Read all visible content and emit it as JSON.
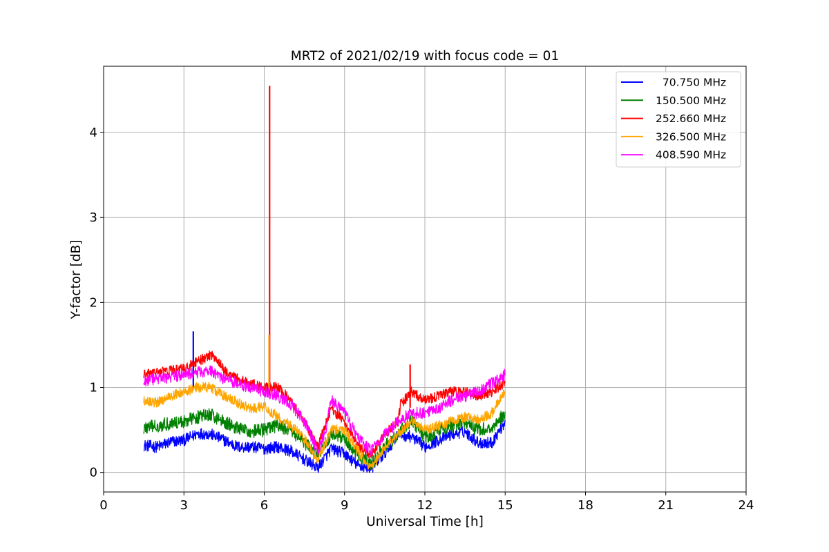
{
  "chart_data": {
    "type": "line",
    "title": "MRT2 of 2021/02/19 with focus code = 01",
    "xlabel": "Universal Time [h]",
    "ylabel": "Y-factor [dB]",
    "xlim": [
      0,
      24
    ],
    "ylim": [
      -0.23,
      4.78
    ],
    "xticks": [
      0,
      3,
      6,
      9,
      12,
      15,
      18,
      21,
      24
    ],
    "yticks": [
      0,
      1,
      2,
      3,
      4
    ],
    "grid": true,
    "legend_position": "top-right",
    "series": [
      {
        "name": "  70.750 MHz",
        "color": "#0000ff",
        "noise": 0.07,
        "spikes": [
          [
            3.35,
            1.66
          ]
        ],
        "x": [
          1.5,
          2.0,
          2.5,
          3.0,
          3.35,
          3.5,
          4.0,
          4.5,
          5.0,
          5.5,
          6.0,
          6.5,
          7.0,
          7.5,
          8.0,
          8.5,
          9.0,
          9.5,
          10.0,
          10.5,
          11.0,
          11.5,
          12.0,
          12.5,
          13.0,
          13.5,
          14.0,
          14.5,
          15.0
        ],
        "y": [
          0.32,
          0.3,
          0.36,
          0.38,
          0.43,
          0.46,
          0.45,
          0.38,
          0.3,
          0.3,
          0.28,
          0.3,
          0.25,
          0.15,
          0.05,
          0.28,
          0.22,
          0.08,
          0.05,
          0.22,
          0.45,
          0.42,
          0.3,
          0.38,
          0.45,
          0.48,
          0.35,
          0.35,
          0.6
        ]
      },
      {
        "name": "150.500 MHz",
        "color": "#008000",
        "noise": 0.08,
        "spikes": [],
        "x": [
          1.5,
          2.0,
          2.5,
          3.0,
          3.5,
          4.0,
          4.5,
          5.0,
          5.5,
          6.0,
          6.5,
          7.0,
          7.5,
          8.0,
          8.5,
          9.0,
          9.5,
          10.0,
          10.5,
          11.0,
          11.5,
          12.0,
          12.5,
          13.0,
          13.5,
          14.0,
          14.5,
          15.0
        ],
        "y": [
          0.52,
          0.55,
          0.58,
          0.6,
          0.65,
          0.68,
          0.6,
          0.52,
          0.48,
          0.5,
          0.55,
          0.5,
          0.35,
          0.2,
          0.45,
          0.4,
          0.2,
          0.1,
          0.3,
          0.45,
          0.62,
          0.4,
          0.5,
          0.55,
          0.6,
          0.5,
          0.52,
          0.7
        ]
      },
      {
        "name": "252.660 MHz",
        "color": "#ff0000",
        "noise": 0.06,
        "spikes": [
          [
            6.2,
            4.55
          ],
          [
            11.45,
            1.27
          ]
        ],
        "x": [
          1.5,
          2.0,
          2.5,
          3.0,
          3.5,
          4.0,
          4.2,
          4.5,
          5.0,
          5.5,
          6.0,
          6.5,
          7.0,
          7.5,
          8.0,
          8.5,
          9.0,
          9.5,
          10.0,
          10.5,
          11.0,
          11.1,
          11.5,
          12.0,
          12.5,
          13.0,
          13.5,
          14.0,
          14.5,
          15.0
        ],
        "y": [
          1.15,
          1.18,
          1.2,
          1.22,
          1.3,
          1.38,
          1.35,
          1.2,
          1.1,
          1.05,
          1.0,
          1.0,
          0.85,
          0.6,
          0.3,
          0.75,
          0.6,
          0.3,
          0.2,
          0.45,
          0.6,
          0.8,
          0.95,
          0.85,
          0.9,
          0.95,
          0.95,
          0.9,
          0.95,
          1.05
        ]
      },
      {
        "name": "326.500 MHz",
        "color": "#ffa500",
        "noise": 0.06,
        "spikes": [
          [
            6.18,
            1.62
          ]
        ],
        "x": [
          1.5,
          2.0,
          2.5,
          3.0,
          3.5,
          4.0,
          4.5,
          5.0,
          5.5,
          6.0,
          6.5,
          7.0,
          7.5,
          8.0,
          8.5,
          9.0,
          9.5,
          10.0,
          10.5,
          11.0,
          11.5,
          12.0,
          12.5,
          13.0,
          13.5,
          14.0,
          14.5,
          15.0
        ],
        "y": [
          0.85,
          0.82,
          0.9,
          0.95,
          1.0,
          1.0,
          0.9,
          0.82,
          0.75,
          0.78,
          0.65,
          0.55,
          0.4,
          0.15,
          0.5,
          0.5,
          0.25,
          0.05,
          0.3,
          0.45,
          0.6,
          0.5,
          0.55,
          0.6,
          0.65,
          0.62,
          0.7,
          0.95
        ]
      },
      {
        "name": "408.590 MHz",
        "color": "#ff00ff",
        "noise": 0.07,
        "spikes": [],
        "x": [
          1.5,
          2.0,
          2.5,
          3.0,
          3.5,
          4.0,
          4.5,
          5.0,
          5.5,
          6.0,
          6.5,
          7.0,
          7.5,
          8.0,
          8.3,
          8.5,
          9.0,
          9.5,
          10.0,
          10.5,
          11.0,
          11.5,
          12.0,
          12.5,
          13.0,
          13.5,
          14.0,
          14.5,
          15.0
        ],
        "y": [
          1.08,
          1.1,
          1.12,
          1.15,
          1.18,
          1.2,
          1.1,
          1.05,
          1.0,
          0.95,
          0.9,
          0.8,
          0.6,
          0.25,
          0.5,
          0.85,
          0.7,
          0.4,
          0.25,
          0.45,
          0.6,
          0.7,
          0.7,
          0.75,
          0.85,
          0.9,
          0.95,
          1.05,
          1.15
        ]
      }
    ]
  }
}
